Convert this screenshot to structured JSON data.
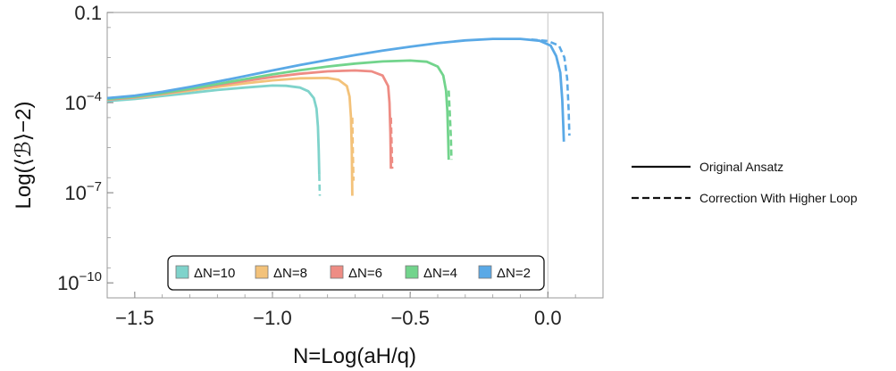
{
  "chart_data": {
    "type": "line",
    "xlabel": "N=Log(aH/q)",
    "ylabel": "Log(⟨ℬ⟩−2)",
    "xlim": [
      -1.6,
      0.2
    ],
    "ylim_log10": [
      -10.5,
      -1
    ],
    "y_scale": "log",
    "x_ticks": [
      {
        "value": -1.5,
        "label": "−1.5"
      },
      {
        "value": -1.0,
        "label": "−1.0"
      },
      {
        "value": -0.5,
        "label": "−0.5"
      },
      {
        "value": 0.0,
        "label": "0.0"
      }
    ],
    "y_ticks": [
      {
        "log10": -1,
        "base": "0.1",
        "exp": ""
      },
      {
        "log10": -4,
        "base": "10",
        "exp": "−4"
      },
      {
        "log10": -7,
        "base": "10",
        "exp": "−7"
      },
      {
        "log10": -10,
        "base": "10",
        "exp": "−10"
      }
    ],
    "vertical_reference_x": 0.0,
    "grid": false,
    "legend_position": "bottom-center",
    "series": [
      {
        "name": "ΔN=10",
        "color": "#7fd3cb",
        "solid": [
          [
            -1.6,
            -3.95
          ],
          [
            -1.5,
            -3.88
          ],
          [
            -1.4,
            -3.78
          ],
          [
            -1.3,
            -3.68
          ],
          [
            -1.2,
            -3.58
          ],
          [
            -1.1,
            -3.5
          ],
          [
            -1.0,
            -3.43
          ],
          [
            -0.95,
            -3.44
          ],
          [
            -0.9,
            -3.5
          ],
          [
            -0.87,
            -3.62
          ],
          [
            -0.85,
            -3.85
          ],
          [
            -0.84,
            -4.2
          ],
          [
            -0.835,
            -4.8
          ],
          [
            -0.832,
            -5.6
          ],
          [
            -0.83,
            -6.4
          ]
        ],
        "dashed": [
          [
            -0.83,
            -6.4
          ],
          [
            -0.829,
            -6.8
          ],
          [
            -0.828,
            -7.1
          ]
        ]
      },
      {
        "name": "ΔN=8",
        "color": "#f3c27a",
        "solid": [
          [
            -1.6,
            -3.9
          ],
          [
            -1.5,
            -3.83
          ],
          [
            -1.4,
            -3.72
          ],
          [
            -1.3,
            -3.6
          ],
          [
            -1.2,
            -3.48
          ],
          [
            -1.1,
            -3.36
          ],
          [
            -1.0,
            -3.26
          ],
          [
            -0.9,
            -3.19
          ],
          [
            -0.8,
            -3.18
          ],
          [
            -0.76,
            -3.24
          ],
          [
            -0.73,
            -3.45
          ],
          [
            -0.72,
            -3.8
          ],
          [
            -0.715,
            -4.5
          ],
          [
            -0.712,
            -5.6
          ],
          [
            -0.71,
            -7.1
          ]
        ],
        "dashed": [
          [
            -0.71,
            -4.5
          ],
          [
            -0.708,
            -5.6
          ],
          [
            -0.706,
            -6.6
          ]
        ]
      },
      {
        "name": "ΔN=6",
        "color": "#ee8c84",
        "solid": [
          [
            -1.6,
            -3.9
          ],
          [
            -1.5,
            -3.82
          ],
          [
            -1.4,
            -3.7
          ],
          [
            -1.3,
            -3.56
          ],
          [
            -1.2,
            -3.42
          ],
          [
            -1.1,
            -3.28
          ],
          [
            -1.0,
            -3.15
          ],
          [
            -0.9,
            -3.04
          ],
          [
            -0.8,
            -2.96
          ],
          [
            -0.7,
            -2.93
          ],
          [
            -0.64,
            -2.96
          ],
          [
            -0.6,
            -3.1
          ],
          [
            -0.58,
            -3.45
          ],
          [
            -0.575,
            -4.0
          ],
          [
            -0.572,
            -5.0
          ],
          [
            -0.57,
            -6.2
          ]
        ],
        "dashed": [
          [
            -0.57,
            -4.5
          ],
          [
            -0.567,
            -5.5
          ],
          [
            -0.565,
            -6.2
          ]
        ]
      },
      {
        "name": "ΔN=4",
        "color": "#72d48c",
        "solid": [
          [
            -1.6,
            -3.88
          ],
          [
            -1.5,
            -3.8
          ],
          [
            -1.4,
            -3.68
          ],
          [
            -1.3,
            -3.54
          ],
          [
            -1.2,
            -3.38
          ],
          [
            -1.1,
            -3.22
          ],
          [
            -1.0,
            -3.06
          ],
          [
            -0.9,
            -2.92
          ],
          [
            -0.8,
            -2.8
          ],
          [
            -0.7,
            -2.7
          ],
          [
            -0.6,
            -2.63
          ],
          [
            -0.5,
            -2.6
          ],
          [
            -0.44,
            -2.64
          ],
          [
            -0.4,
            -2.8
          ],
          [
            -0.38,
            -3.1
          ],
          [
            -0.37,
            -3.6
          ],
          [
            -0.365,
            -4.3
          ],
          [
            -0.362,
            -5.2
          ],
          [
            -0.36,
            -5.9
          ]
        ],
        "dashed": [
          [
            -0.36,
            -3.6
          ],
          [
            -0.356,
            -4.4
          ],
          [
            -0.352,
            -5.2
          ],
          [
            -0.35,
            -5.9
          ]
        ]
      },
      {
        "name": "ΔN=2",
        "color": "#5aa9e6",
        "solid": [
          [
            -1.6,
            -3.85
          ],
          [
            -1.5,
            -3.77
          ],
          [
            -1.4,
            -3.64
          ],
          [
            -1.3,
            -3.48
          ],
          [
            -1.2,
            -3.3
          ],
          [
            -1.1,
            -3.12
          ],
          [
            -1.0,
            -2.93
          ],
          [
            -0.9,
            -2.75
          ],
          [
            -0.8,
            -2.58
          ],
          [
            -0.7,
            -2.42
          ],
          [
            -0.6,
            -2.27
          ],
          [
            -0.5,
            -2.14
          ],
          [
            -0.4,
            -2.02
          ],
          [
            -0.3,
            -1.93
          ],
          [
            -0.2,
            -1.88
          ],
          [
            -0.1,
            -1.88
          ],
          [
            -0.03,
            -1.94
          ],
          [
            0.01,
            -2.1
          ],
          [
            0.03,
            -2.45
          ],
          [
            0.045,
            -3.0
          ],
          [
            0.052,
            -3.9
          ],
          [
            0.056,
            -4.8
          ],
          [
            0.058,
            -5.3
          ]
        ],
        "dashed": [
          [
            -0.06,
            -1.9
          ],
          [
            0.0,
            -1.95
          ],
          [
            0.04,
            -2.1
          ],
          [
            0.06,
            -2.5
          ],
          [
            0.07,
            -3.2
          ],
          [
            0.075,
            -4.2
          ],
          [
            0.078,
            -5.1
          ]
        ]
      }
    ],
    "style_legend": [
      {
        "label": "Original Ansatz",
        "dash": false
      },
      {
        "label": "Correction With Higher Loop",
        "dash": true
      }
    ]
  }
}
